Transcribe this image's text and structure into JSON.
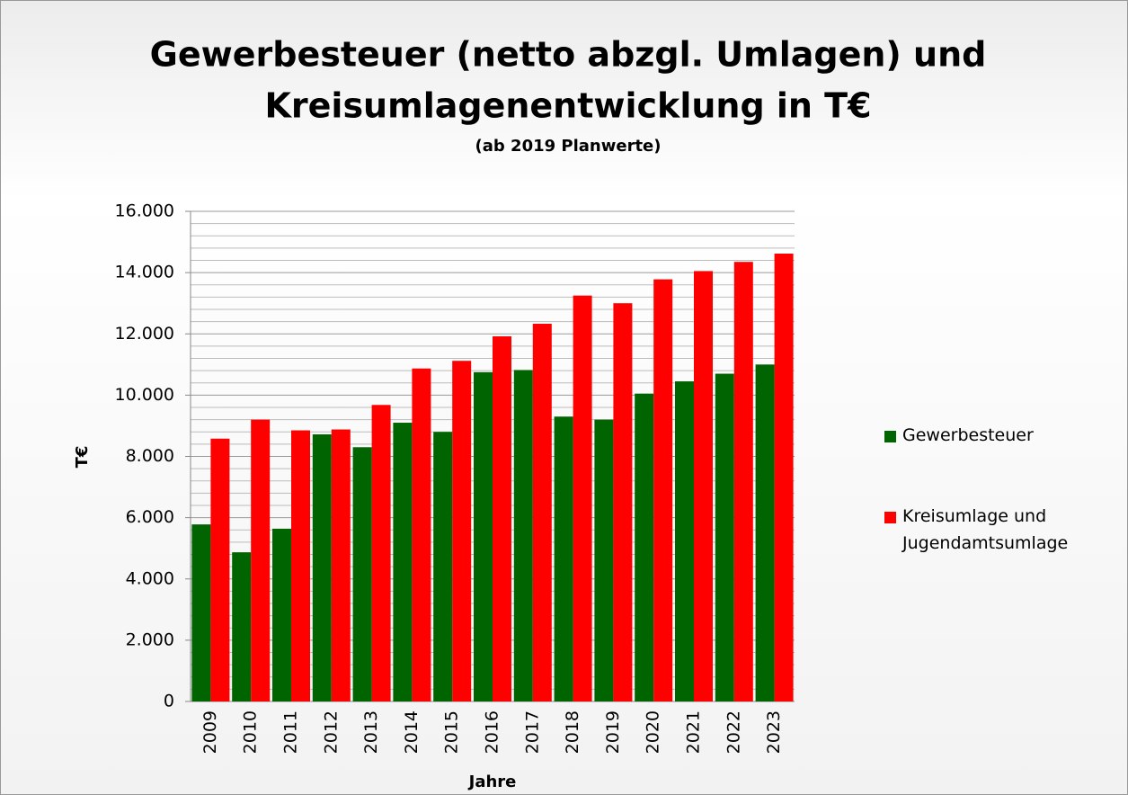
{
  "chart_data": {
    "type": "bar",
    "title": [
      "Gewerbesteuer (netto abzgl. Umlagen) und",
      "Kreisumlagenentwicklung in T€"
    ],
    "subtitle": "(ab 2019 Planwerte)",
    "x_label": "Jahre",
    "y_label": "T€",
    "categories": [
      "2009",
      "2010",
      "2011",
      "2012",
      "2013",
      "2014",
      "2015",
      "2016",
      "2017",
      "2018",
      "2019",
      "2020",
      "2021",
      "2022",
      "2023"
    ],
    "series": [
      {
        "name": "Gewerbesteuer",
        "color": "#006400",
        "values": [
          5780,
          4870,
          5640,
          8720,
          8300,
          9100,
          8800,
          10750,
          10820,
          9300,
          9200,
          10050,
          10450,
          10700,
          11000
        ]
      },
      {
        "name": "Kreisumlage und Jugendamtsumlage",
        "color": "#ff0000",
        "values": [
          8580,
          9200,
          8850,
          8880,
          9680,
          10870,
          11120,
          11920,
          12330,
          13250,
          13000,
          13780,
          14050,
          14350,
          14620
        ]
      }
    ],
    "ylim": [
      0,
      16000
    ],
    "yticks": [
      {
        "value": 0,
        "label": "0"
      },
      {
        "value": 2000,
        "label": "2.000"
      },
      {
        "value": 4000,
        "label": "4.000"
      },
      {
        "value": 6000,
        "label": "6.000"
      },
      {
        "value": 8000,
        "label": "8.000"
      },
      {
        "value": 10000,
        "label": "10.000"
      },
      {
        "value": 12000,
        "label": "12.000"
      },
      {
        "value": 14000,
        "label": "14.000"
      },
      {
        "value": 16000,
        "label": "16.000"
      }
    ],
    "minor_yticks": [
      400,
      800,
      1200,
      1600,
      2400,
      2800,
      3200,
      3600,
      4400,
      4800,
      5200,
      5600,
      6400,
      6800,
      7200,
      7600,
      8400,
      8800,
      9200,
      9600,
      10400,
      10800,
      11200,
      11600,
      12400,
      12800,
      13200,
      13600,
      14400,
      14800,
      15200,
      15600
    ],
    "grid": true,
    "legend": "right"
  }
}
